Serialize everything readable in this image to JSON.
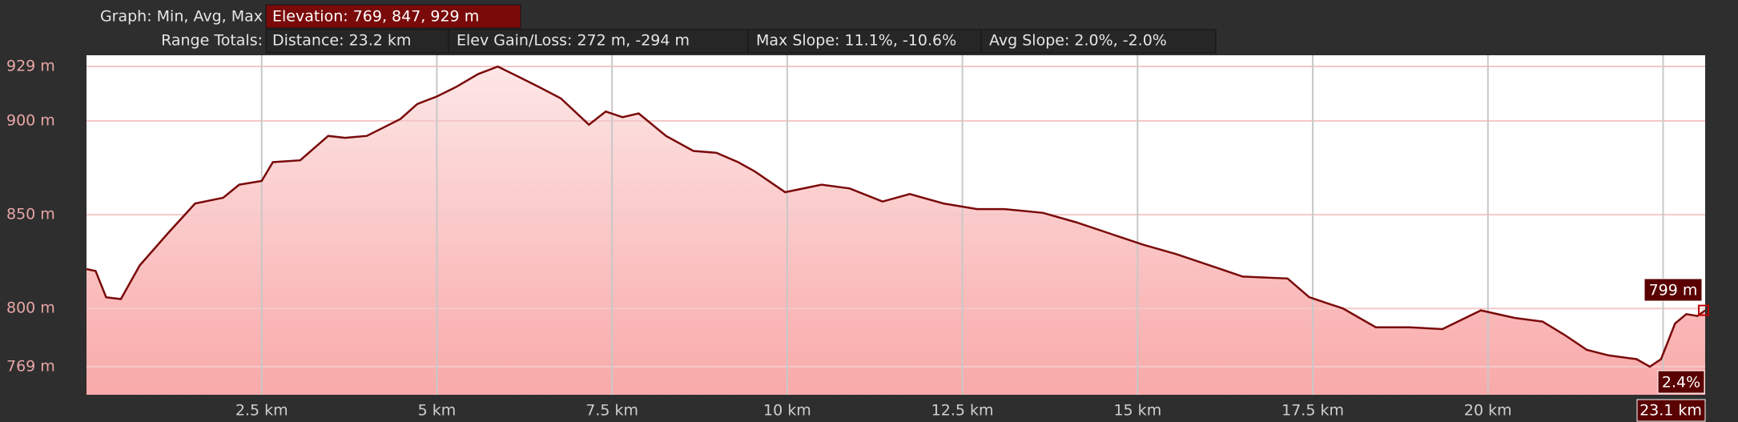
{
  "header": {
    "graph_label": "Graph: Min, Avg, Max",
    "elevation": "Elevation: 769, 847, 929 m",
    "range_label": "Range Totals:",
    "distance": "Distance: 23.2 km",
    "gain_loss": "Elev Gain/Loss: 272 m, -294 m",
    "max_slope": "Max Slope: 11.1%, -10.6%",
    "avg_slope": "Avg Slope: 2.0%, -2.0%"
  },
  "chart_data": {
    "type": "area",
    "x": [
      0,
      0.13,
      0.28,
      0.49,
      0.76,
      1.16,
      1.55,
      1.95,
      2.18,
      2.5,
      2.66,
      3.05,
      3.45,
      3.69,
      4.0,
      4.48,
      4.72,
      5.0,
      5.27,
      5.59,
      5.87,
      6.14,
      6.46,
      6.77,
      7.17,
      7.41,
      7.65,
      7.88,
      8.27,
      8.66,
      8.99,
      9.3,
      9.54,
      9.97,
      10.49,
      10.89,
      11.36,
      11.75,
      12.23,
      12.71,
      13.1,
      13.65,
      14.12,
      14.6,
      15.08,
      15.55,
      16.03,
      16.5,
      17.14,
      17.45,
      17.93,
      18.4,
      18.88,
      19.35,
      19.9,
      20.38,
      20.78,
      21.09,
      21.41,
      21.72,
      22.12,
      22.31,
      22.47,
      22.67,
      22.83,
      22.99,
      23.1
    ],
    "values": [
      821,
      820,
      806,
      805,
      823,
      840,
      856,
      859,
      866,
      868,
      878,
      879,
      892,
      891,
      892,
      901,
      909,
      913,
      918,
      925,
      929,
      924,
      918,
      912,
      898,
      905,
      902,
      904,
      892,
      884,
      883,
      878,
      873,
      862,
      866,
      864,
      857,
      861,
      856,
      853,
      853,
      851,
      846,
      840,
      834,
      829,
      823,
      817,
      816,
      806,
      800,
      790,
      790,
      789,
      799,
      795,
      793,
      786,
      778,
      775,
      773,
      769,
      773,
      792,
      797,
      796,
      799
    ],
    "color": "#7a0a0a",
    "xlim": [
      0,
      23.1
    ],
    "ylim": [
      754,
      935
    ],
    "xticks": [
      {
        "value": 2.5,
        "label": "2.5 km"
      },
      {
        "value": 5,
        "label": "5 km"
      },
      {
        "value": 7.5,
        "label": "7.5 km"
      },
      {
        "value": 10,
        "label": "10 km"
      },
      {
        "value": 12.5,
        "label": "12.5 km"
      },
      {
        "value": 15,
        "label": "15 km"
      },
      {
        "value": 17.5,
        "label": "17.5 km"
      },
      {
        "value": 20,
        "label": "20 km"
      },
      {
        "value": 22.5,
        "label": null
      }
    ],
    "yticks": [
      {
        "value": 769,
        "label": "769 m"
      },
      {
        "value": 800,
        "label": "800 m"
      },
      {
        "value": 850,
        "label": "850 m"
      },
      {
        "value": 900,
        "label": "900 m"
      },
      {
        "value": 929,
        "label": "929 m"
      }
    ],
    "grid": true,
    "cursor": {
      "x": 23.1,
      "x_label": "23.1 km",
      "y": 799,
      "y_label": "799 m",
      "slope_label": "2.4%"
    }
  }
}
